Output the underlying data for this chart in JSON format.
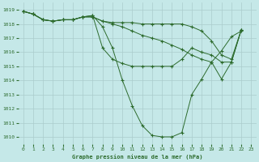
{
  "title": "Graphe pression niveau de la mer (hPa)",
  "bg_color": "#c5e8e8",
  "grid_color": "#aacccc",
  "line_color": "#2d6b2d",
  "xlim": [
    -0.5,
    23.5
  ],
  "ylim": [
    1009.5,
    1019.5
  ],
  "yticks": [
    1010,
    1011,
    1012,
    1013,
    1014,
    1015,
    1016,
    1017,
    1018,
    1019
  ],
  "xticks": [
    0,
    1,
    2,
    3,
    4,
    5,
    6,
    7,
    8,
    9,
    10,
    11,
    12,
    13,
    14,
    15,
    16,
    17,
    18,
    19,
    20,
    21,
    22,
    23
  ],
  "series": [
    {
      "x": [
        0,
        1,
        2,
        3,
        4,
        5,
        6,
        7,
        8,
        9,
        10,
        11,
        12,
        13,
        14,
        15,
        16,
        17,
        18,
        19,
        20,
        21,
        22,
        23
      ],
      "y": [
        1018.9,
        1018.7,
        1018.3,
        1018.2,
        1018.3,
        1018.3,
        1018.5,
        1018.6,
        1017.8,
        1016.3,
        1014.0,
        1012.2,
        1010.8,
        1010.1,
        1010.0,
        1010.0,
        1010.3,
        1013.0,
        1014.1,
        1015.3,
        1016.1,
        1017.1,
        1017.5,
        null
      ]
    },
    {
      "x": [
        0,
        1,
        2,
        3,
        4,
        5,
        6,
        7,
        8,
        9,
        10,
        11,
        12,
        13,
        14,
        15,
        16,
        17,
        18,
        19,
        20,
        21,
        22,
        23
      ],
      "y": [
        1018.9,
        1018.7,
        1018.3,
        1018.2,
        1018.3,
        1018.3,
        1018.5,
        1018.6,
        1016.3,
        1015.5,
        1015.2,
        1015.0,
        1015.0,
        1015.0,
        1015.0,
        1015.0,
        1015.5,
        1016.3,
        1016.0,
        1015.8,
        1015.3,
        1015.3,
        1017.6,
        null
      ]
    },
    {
      "x": [
        0,
        1,
        2,
        3,
        4,
        5,
        6,
        7,
        8,
        9,
        10,
        11,
        12,
        13,
        14,
        15,
        16,
        17,
        18,
        19,
        20,
        21,
        22,
        23
      ],
      "y": [
        1018.9,
        1018.7,
        1018.3,
        1018.2,
        1018.3,
        1018.3,
        1018.5,
        1018.5,
        1018.2,
        1018.1,
        1018.1,
        1018.1,
        1018.0,
        1018.0,
        1018.0,
        1018.0,
        1018.0,
        1017.8,
        1017.5,
        1016.8,
        1015.8,
        1015.5,
        1017.6,
        null
      ]
    },
    {
      "x": [
        0,
        1,
        2,
        3,
        4,
        5,
        6,
        7,
        8,
        9,
        10,
        11,
        12,
        13,
        14,
        15,
        16,
        17,
        18,
        19,
        20,
        21,
        22,
        23
      ],
      "y": [
        1018.9,
        1018.7,
        1018.3,
        1018.2,
        1018.3,
        1018.3,
        1018.5,
        1018.5,
        1018.2,
        1018.0,
        1017.8,
        1017.5,
        1017.2,
        1017.0,
        1016.8,
        1016.5,
        1016.2,
        1015.8,
        1015.5,
        1015.3,
        1014.1,
        1015.3,
        1017.6,
        null
      ]
    }
  ]
}
